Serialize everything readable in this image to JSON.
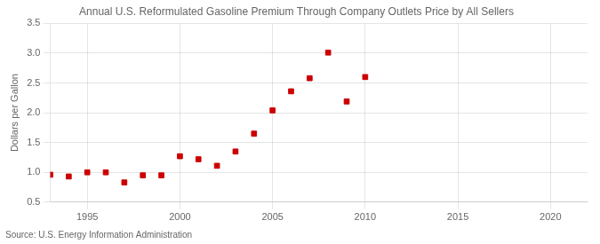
{
  "chart_data": {
    "type": "scatter",
    "title": "Annual U.S. Reformulated Gasoline Premium Through Company Outlets Price by All Sellers",
    "ylabel": "Dollars per Gallon",
    "source": "Source: U.S. Energy Information Administration",
    "x": [
      1993,
      1994,
      1995,
      1996,
      1997,
      1998,
      1999,
      2000,
      2001,
      2002,
      2003,
      2004,
      2005,
      2006,
      2007,
      2008,
      2009,
      2010
    ],
    "values": [
      0.96,
      0.93,
      1.0,
      1.0,
      0.83,
      0.95,
      0.95,
      1.27,
      1.22,
      1.11,
      1.35,
      1.65,
      2.04,
      2.36,
      2.58,
      3.01,
      2.19,
      2.6
    ],
    "color": "#cc0000",
    "marker": "square",
    "xlim": [
      1993,
      2022
    ],
    "xticks": [
      1995,
      2000,
      2005,
      2010,
      2015,
      2020
    ],
    "ylim": [
      0.5,
      3.5
    ],
    "yticks": [
      0.5,
      {
        "value": 1.0,
        "label": "1.0"
      },
      1.5,
      {
        "value": 2.0,
        "label": "2.0"
      },
      2.5,
      {
        "value": 3.0,
        "label": "3.0"
      },
      3.5
    ],
    "grid": true
  }
}
